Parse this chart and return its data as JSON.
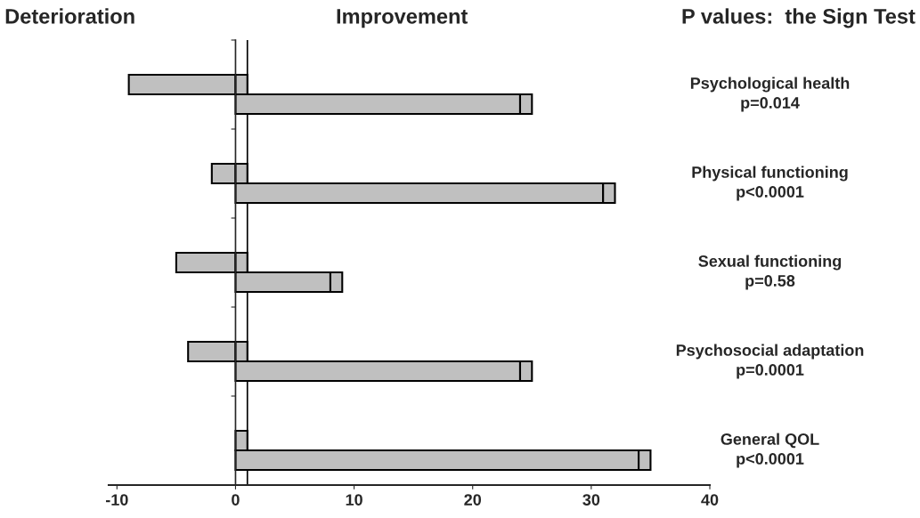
{
  "chart_data": {
    "type": "bar",
    "orientation": "horizontal",
    "stacked": true,
    "title": "P values:  the Sign Test",
    "annotations": [
      "Deterioration",
      "Improvement"
    ],
    "categories": [
      "Psychological health",
      "p=0.014",
      "Physical functioning",
      "p<0.0001",
      "Sexual functioning",
      "p=0.58",
      "Psychosocial adaptation",
      "p=0.0001",
      "General QOL",
      "p<0.0001"
    ],
    "series": [
      {
        "color": "#c0c0c0",
        "values": [
          -9,
          24,
          -2,
          31,
          -5,
          8,
          -4,
          24,
          0,
          34
        ]
      },
      {
        "color": "#c0c0c0",
        "values": [
          1,
          1,
          1,
          1,
          1,
          1,
          1,
          1,
          1,
          1
        ]
      }
    ],
    "xlim": [
      -10.7,
      40
    ],
    "xticks": [
      -10,
      0,
      10,
      20,
      30,
      40
    ],
    "ref_lines": [
      {
        "axis": "x",
        "value": 1,
        "color": "#000000"
      }
    ]
  }
}
